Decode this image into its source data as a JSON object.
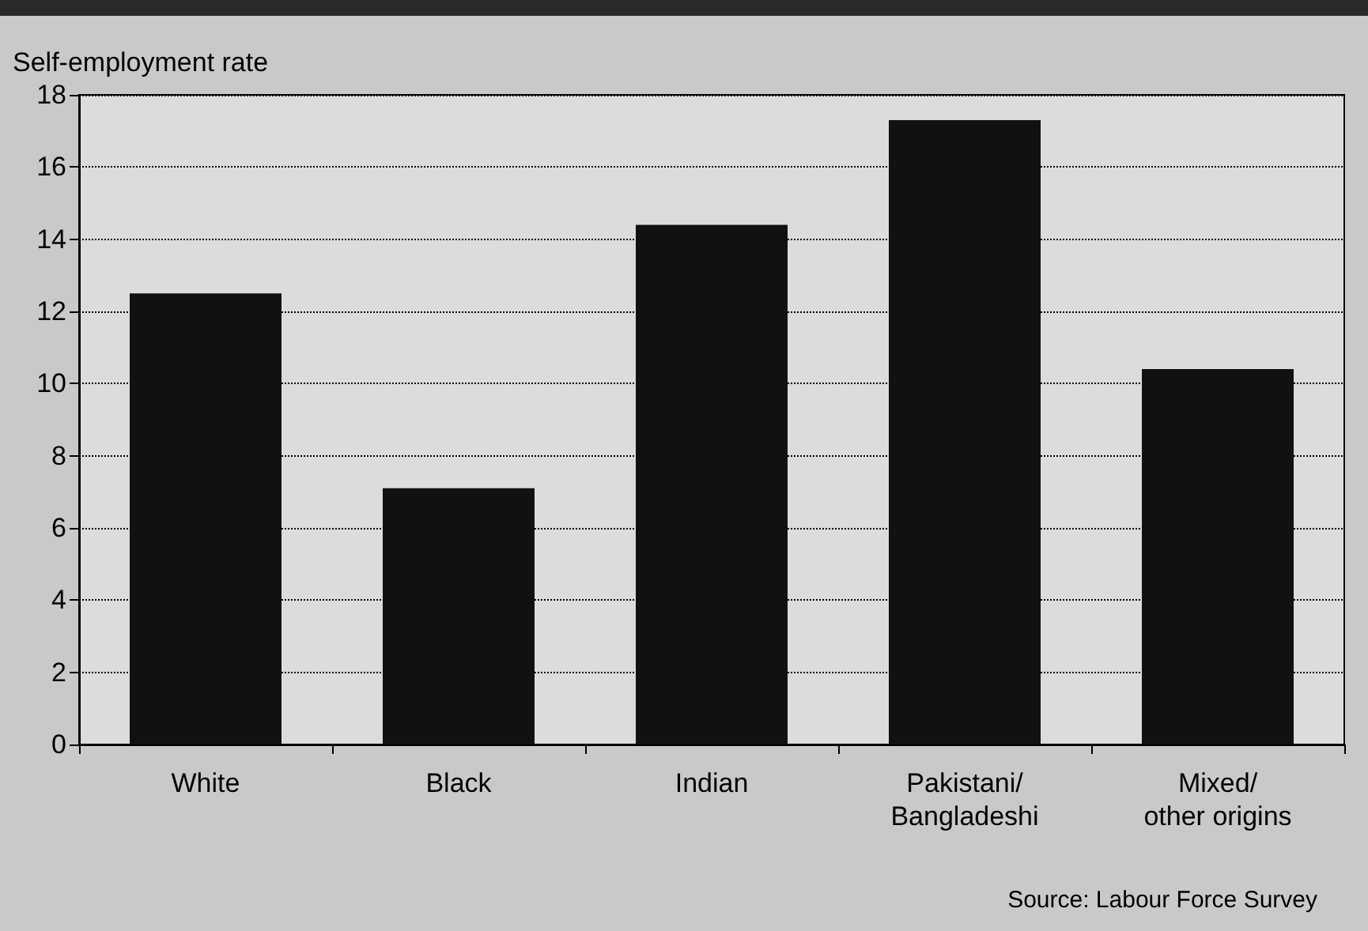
{
  "chart_data": {
    "type": "bar",
    "ylabel": "Self-employment rate",
    "categories": [
      "White",
      "Black",
      "Indian",
      "Pakistani/\nBangladeshi",
      "Mixed/\nother origins"
    ],
    "values": [
      12.5,
      7.1,
      14.4,
      17.3,
      10.4
    ],
    "color": "#111111",
    "ylim": [
      0,
      18
    ],
    "yticks": [
      0,
      2,
      4,
      6,
      8,
      10,
      12,
      14,
      16,
      18
    ],
    "grid": "y",
    "annotations": [
      "Source: Labour Force Survey"
    ]
  }
}
